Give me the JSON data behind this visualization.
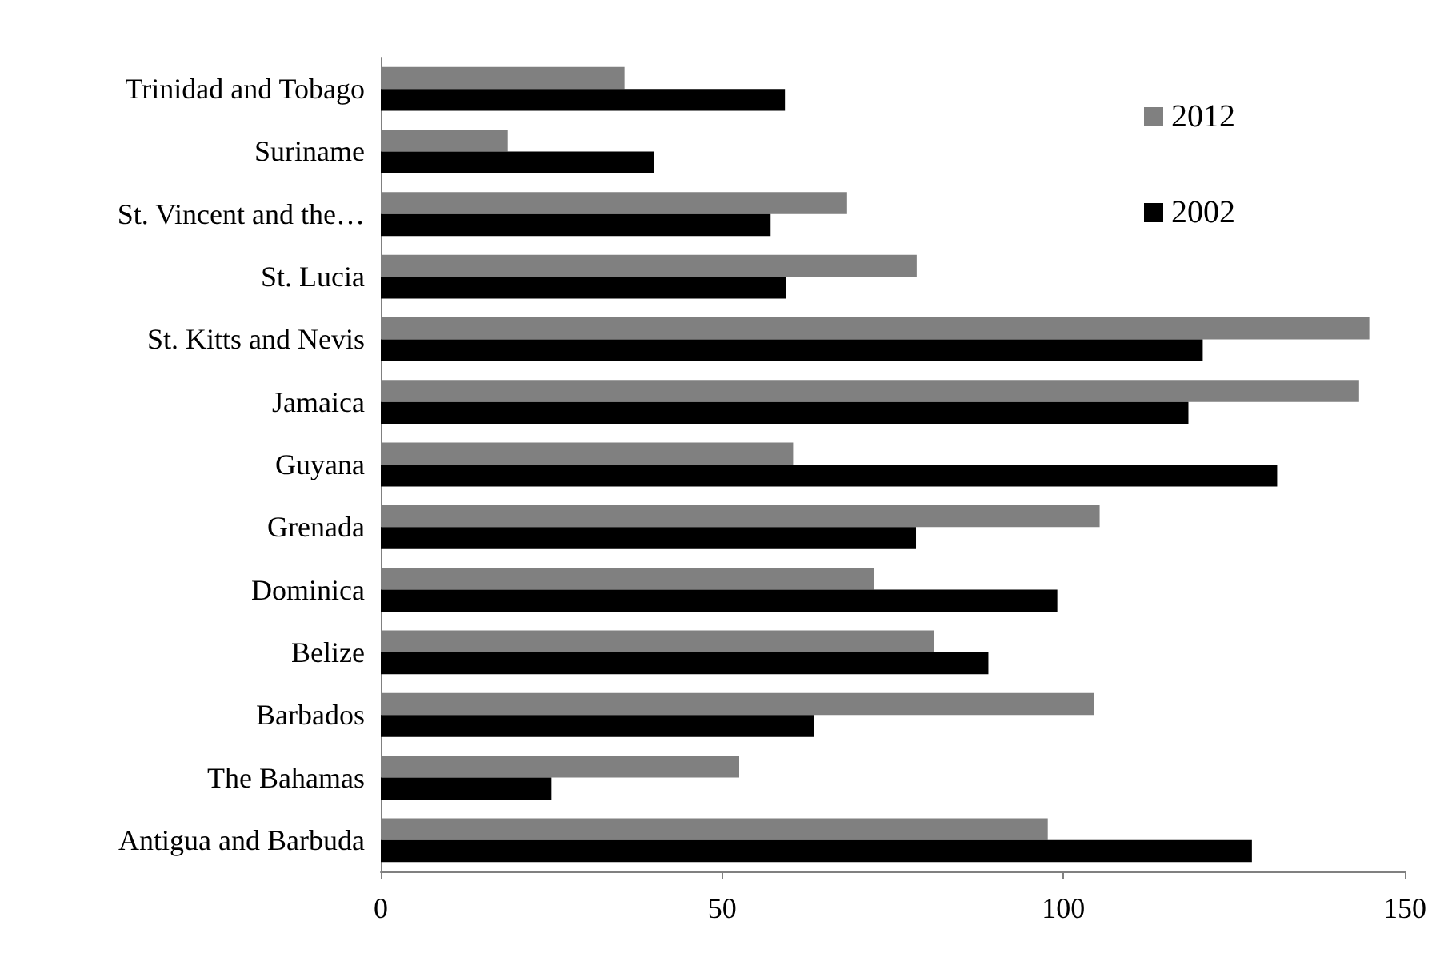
{
  "chart_data": {
    "type": "bar",
    "orientation": "horizontal",
    "categories": [
      "Trinidad and Tobago",
      "Suriname",
      "St. Vincent and the…",
      "St. Lucia",
      "St. Kitts and Nevis",
      "Jamaica",
      "Guyana",
      "Grenada",
      "Dominica",
      "Belize",
      "Barbados",
      "The Bahamas",
      "Antigua and Barbuda"
    ],
    "series": [
      {
        "name": "2012",
        "color": "#808080",
        "values": [
          35.7,
          18.6,
          68.3,
          78.5,
          144.8,
          143.3,
          60.4,
          105.3,
          72.2,
          81.0,
          104.5,
          52.5,
          97.7
        ]
      },
      {
        "name": "2002",
        "color": "#000000",
        "values": [
          59.2,
          40.0,
          57.1,
          59.4,
          120.4,
          118.3,
          131.3,
          78.4,
          99.1,
          89.0,
          63.5,
          25.0,
          127.6
        ]
      }
    ],
    "xlim": [
      0,
      150
    ],
    "xticks": [
      0,
      50,
      100,
      150
    ],
    "grid": false,
    "legend": "top right"
  }
}
